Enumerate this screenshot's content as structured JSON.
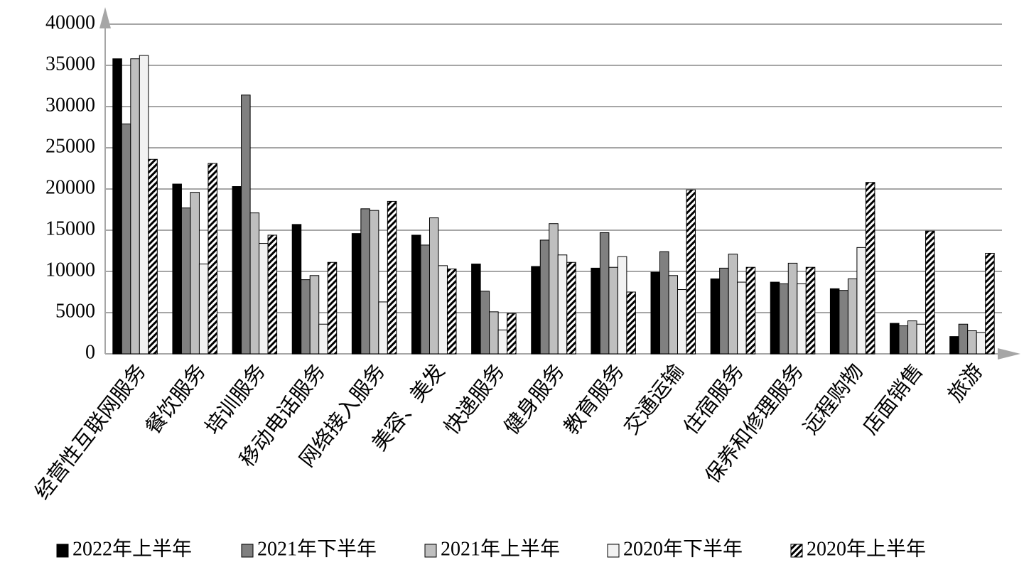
{
  "chart_data": {
    "type": "bar",
    "categories": [
      "经营性互联网服务",
      "餐饮服务",
      "培训服务",
      "移动电话服务",
      "网络接入服务",
      "美容、美发",
      "快递服务",
      "健身服务",
      "教育服务",
      "交通运输",
      "住宿服务",
      "保养和修理服务",
      "远程购物",
      "店面销售",
      "旅游"
    ],
    "series": [
      {
        "name": "2022年上半年",
        "color": "#000000",
        "values": [
          35800,
          20600,
          20300,
          15700,
          14600,
          14400,
          10900,
          10600,
          10400,
          9900,
          9100,
          8700,
          7900,
          3700,
          2100
        ]
      },
      {
        "name": "2021年下半年",
        "color": "#808080",
        "values": [
          27900,
          17700,
          31400,
          9000,
          17600,
          13200,
          7600,
          13800,
          14700,
          12400,
          10400,
          8500,
          7700,
          3400,
          3600
        ]
      },
      {
        "name": "2021年上半年",
        "color": "#bfbfbf",
        "values": [
          35800,
          19600,
          17100,
          9500,
          17400,
          16500,
          5100,
          15800,
          10500,
          9500,
          12100,
          11000,
          9100,
          4000,
          2800
        ]
      },
      {
        "name": "2020年下半年",
        "color": "#f2f2f2",
        "values": [
          36200,
          10900,
          13400,
          3600,
          6300,
          10700,
          2900,
          12000,
          11800,
          7800,
          8700,
          8500,
          12900,
          3600,
          2600
        ]
      },
      {
        "name": "2020年上半年",
        "color": "#000000",
        "pattern": "hatch",
        "values": [
          23600,
          23100,
          14400,
          11100,
          18500,
          10300,
          4900,
          11100,
          7500,
          19900,
          10500,
          10500,
          20800,
          14900,
          12200
        ]
      }
    ],
    "ylim": [
      0,
      40000
    ],
    "yticks": [
      0,
      5000,
      10000,
      15000,
      20000,
      25000,
      30000,
      35000,
      40000
    ],
    "grid": true
  }
}
